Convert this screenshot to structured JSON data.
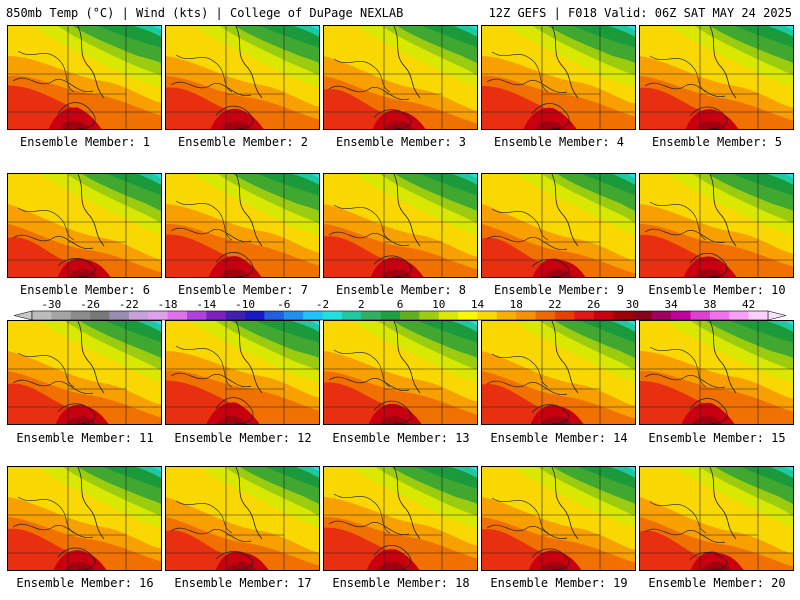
{
  "header": {
    "left": "850mb Temp (°C) | Wind (kts) | College of DuPage NEXLAB",
    "right": "12Z GEFS | F018 Valid: 06Z SAT MAY 24 2025"
  },
  "panels": [
    {
      "label": "Ensemble Member: 1"
    },
    {
      "label": "Ensemble Member: 2"
    },
    {
      "label": "Ensemble Member: 3"
    },
    {
      "label": "Ensemble Member: 4"
    },
    {
      "label": "Ensemble Member: 5"
    },
    {
      "label": "Ensemble Member: 6"
    },
    {
      "label": "Ensemble Member: 7"
    },
    {
      "label": "Ensemble Member: 8"
    },
    {
      "label": "Ensemble Member: 9"
    },
    {
      "label": "Ensemble Member: 10"
    },
    {
      "label": "Ensemble Member: 11"
    },
    {
      "label": "Ensemble Member: 12"
    },
    {
      "label": "Ensemble Member: 13"
    },
    {
      "label": "Ensemble Member: 14"
    },
    {
      "label": "Ensemble Member: 15"
    },
    {
      "label": "Ensemble Member: 16"
    },
    {
      "label": "Ensemble Member: 17"
    },
    {
      "label": "Ensemble Member: 18"
    },
    {
      "label": "Ensemble Member: 19"
    },
    {
      "label": "Ensemble Member: 20"
    }
  ],
  "colorbar": {
    "tick_labels": [
      "-30",
      "-26",
      "-22",
      "-18",
      "-14",
      "-10",
      "-6",
      "-2",
      "2",
      "6",
      "10",
      "14",
      "18",
      "22",
      "26",
      "30",
      "34",
      "38",
      "42"
    ],
    "colors": [
      "#bcbcbc",
      "#a4a4a4",
      "#8c8c8c",
      "#787878",
      "#9a8cb4",
      "#c8a0dc",
      "#e0a0ec",
      "#e070f0",
      "#b040e0",
      "#8020c0",
      "#4020b0",
      "#1818c8",
      "#2060e0",
      "#2090f0",
      "#20c0f8",
      "#20e0e0",
      "#20c8a0",
      "#30b060",
      "#20a040",
      "#60b020",
      "#a0cc10",
      "#d8e800",
      "#f8f800",
      "#f8d800",
      "#f8b000",
      "#f89000",
      "#f06800",
      "#e84000",
      "#e01818",
      "#c80010",
      "#a00008",
      "#880018",
      "#a00060",
      "#c000a0",
      "#e040d0",
      "#f070f0",
      "#f8a0f8",
      "#fcd0fc"
    ]
  }
}
